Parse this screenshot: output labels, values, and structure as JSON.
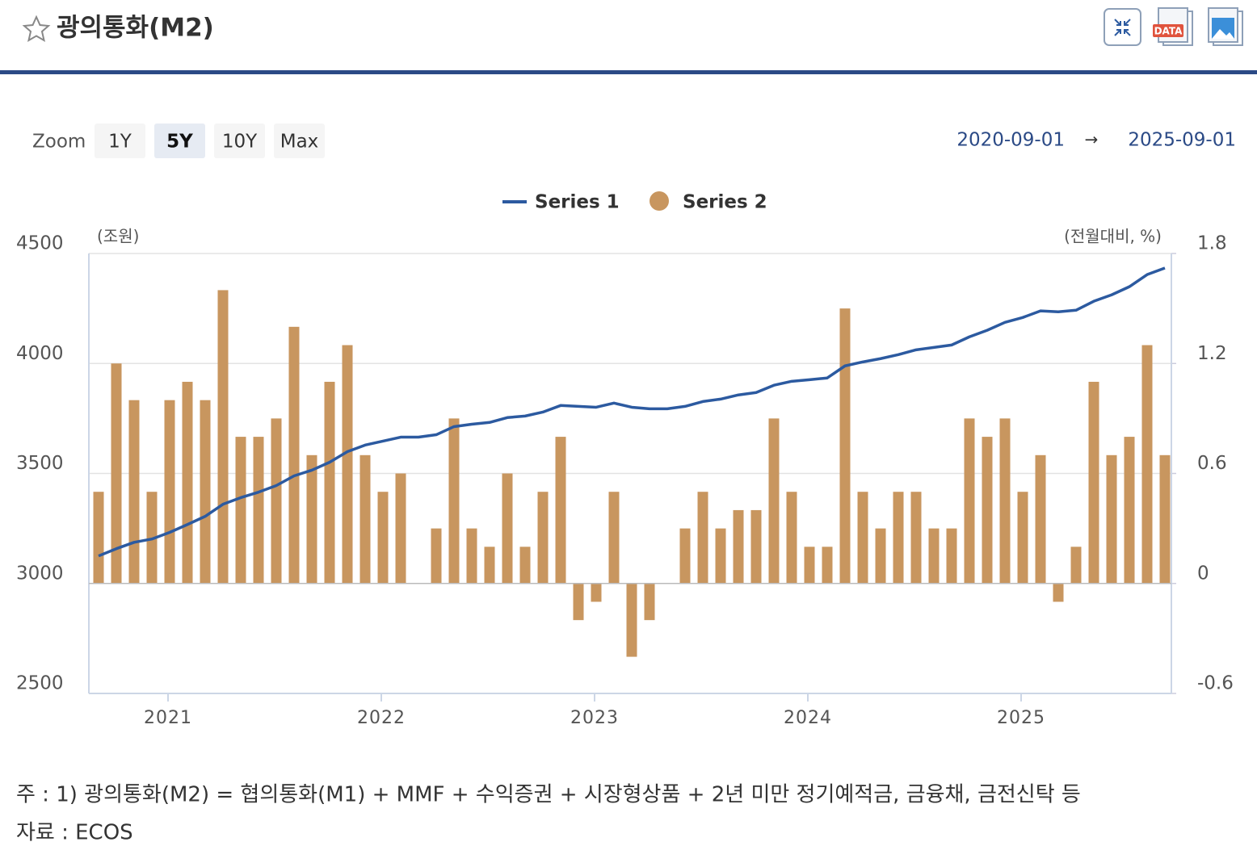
{
  "header": {
    "title": "광의통화(M2)",
    "data_icon_label": "DATA"
  },
  "zoom": {
    "label": "Zoom",
    "options": [
      "1Y",
      "5Y",
      "10Y",
      "Max"
    ],
    "active": 1
  },
  "range": {
    "start": "2020-09-01",
    "arrow": "→",
    "end": "2025-09-01"
  },
  "chart_data": {
    "type": "combo",
    "y_unit_label": "(조원)",
    "y2_unit_label": "(전월대비, %)",
    "categories": [
      null,
      null,
      null,
      null,
      "2021",
      null,
      null,
      null,
      null,
      null,
      null,
      null,
      null,
      null,
      null,
      null,
      "2022",
      null,
      null,
      null,
      null,
      null,
      null,
      null,
      null,
      null,
      null,
      null,
      "2023",
      null,
      null,
      null,
      null,
      null,
      null,
      null,
      null,
      null,
      null,
      null,
      "2024",
      null,
      null,
      null,
      null,
      null,
      null,
      null,
      null,
      null,
      null,
      null,
      "2025",
      null,
      null,
      null,
      null,
      null,
      null,
      null,
      null
    ],
    "series": [
      {
        "name": "Series 1",
        "type": "line",
        "color": "#2c5aa0",
        "axis": "y",
        "values": [
          3125,
          3158,
          3187,
          3202,
          3232,
          3268,
          3305,
          3360,
          3390,
          3415,
          3445,
          3489,
          3515,
          3551,
          3599,
          3629,
          3647,
          3665,
          3665,
          3676,
          3713,
          3724,
          3732,
          3754,
          3761,
          3779,
          3809,
          3805,
          3801,
          3820,
          3801,
          3794,
          3794,
          3805,
          3827,
          3838,
          3857,
          3868,
          3901,
          3919,
          3926,
          3934,
          3989,
          4007,
          4022,
          4040,
          4062,
          4073,
          4084,
          4121,
          4151,
          4187,
          4209,
          4239,
          4235,
          4242,
          4283,
          4312,
          4349,
          4404,
          4434
        ]
      },
      {
        "name": "Series 2",
        "type": "bar",
        "color": "#c8965f",
        "axis": "y2",
        "values": [
          0.5,
          1.2,
          1.0,
          0.5,
          1.0,
          1.1,
          1.0,
          1.6,
          0.8,
          0.8,
          0.9,
          1.4,
          0.7,
          1.1,
          1.3,
          0.7,
          0.5,
          0.6,
          0,
          0.3,
          0.9,
          0.3,
          0.2,
          0.6,
          0.2,
          0.5,
          0.8,
          -0.2,
          -0.1,
          0.5,
          -0.4,
          -0.2,
          0,
          0.3,
          0.5,
          0.3,
          0.4,
          0.4,
          0.9,
          0.5,
          0.2,
          0.2,
          1.5,
          0.5,
          0.3,
          0.5,
          0.5,
          0.3,
          0.3,
          0.9,
          0.8,
          0.9,
          0.5,
          0.7,
          -0.1,
          0.2,
          1.1,
          0.7,
          0.8,
          1.3,
          0.7
        ]
      }
    ],
    "ylim": [
      2500,
      4500
    ],
    "yticks": [
      2500,
      3000,
      3500,
      4000,
      4500
    ],
    "y2lim": [
      -0.6,
      1.8
    ],
    "y2ticks": [
      -0.6,
      0,
      0.6,
      1.2,
      1.8
    ],
    "grid": true,
    "legend": "top"
  },
  "notes": [
    "주 : 1) 광의통화(M2) = 협의통화(M1) + MMF + 수익증권 + 시장형상품 + 2년 미만 정기예적금, 금융채, 금전신탁 등",
    "자료 :  ECOS"
  ]
}
